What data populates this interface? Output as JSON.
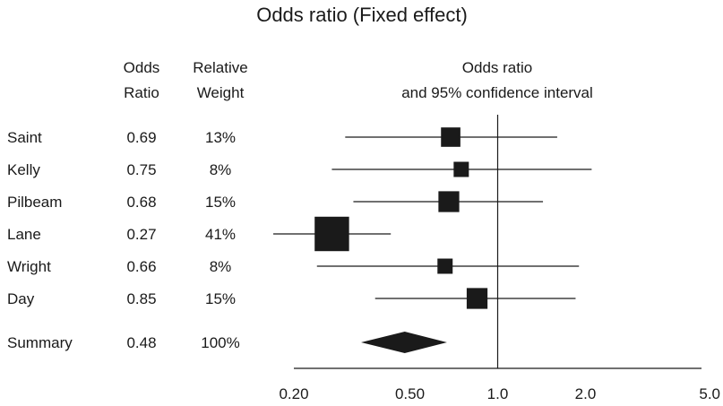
{
  "chart_data": {
    "type": "forest",
    "title": "Odds ratio (Fixed effect)",
    "columns": {
      "odds_ratio": [
        "Odds",
        "Ratio"
      ],
      "weight": [
        "Relative",
        "Weight"
      ],
      "interval": [
        "Odds ratio",
        "and 95% confidence interval"
      ]
    },
    "x_scale": "log",
    "xlim": [
      0.2,
      5.0
    ],
    "x_ticks": [
      {
        "value": 0.2,
        "label": "0.20"
      },
      {
        "value": 0.5,
        "label": "0.50"
      },
      {
        "value": 1.0,
        "label": "1.0"
      },
      {
        "value": 2.0,
        "label": "2.0"
      },
      {
        "value": 5.0,
        "label": "5.0"
      }
    ],
    "reference_line": 1.0,
    "studies": [
      {
        "name": "Saint",
        "or_label": "0.69",
        "weight_label": "13%",
        "or": 0.69,
        "ci": [
          0.3,
          1.6
        ],
        "weight": 13
      },
      {
        "name": "Kelly",
        "or_label": "0.75",
        "weight_label": "8%",
        "or": 0.75,
        "ci": [
          0.27,
          2.1
        ],
        "weight": 8
      },
      {
        "name": "Pilbeam",
        "or_label": "0.68",
        "weight_label": "15%",
        "or": 0.68,
        "ci": [
          0.32,
          1.43
        ],
        "weight": 15
      },
      {
        "name": "Lane",
        "or_label": "0.27",
        "weight_label": "41%",
        "or": 0.27,
        "ci": [
          0.17,
          0.43
        ],
        "weight": 41
      },
      {
        "name": "Wright",
        "or_label": "0.66",
        "weight_label": "8%",
        "or": 0.66,
        "ci": [
          0.24,
          1.9
        ],
        "weight": 8
      },
      {
        "name": "Day",
        "or_label": "0.85",
        "weight_label": "15%",
        "or": 0.85,
        "ci": [
          0.38,
          1.85
        ],
        "weight": 15
      }
    ],
    "summary": {
      "name": "Summary",
      "or_label": "0.48",
      "weight_label": "100%",
      "or": 0.48,
      "ci": [
        0.34,
        0.67
      ]
    }
  }
}
